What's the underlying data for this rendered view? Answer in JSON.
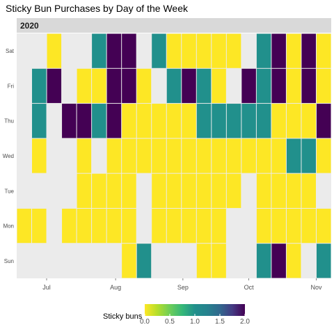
{
  "chart_data": {
    "type": "heatmap",
    "title": "Sticky Bun Purchases by Day of the Week",
    "facet_label": "2020",
    "y_categories": [
      "Sun",
      "Mon",
      "Tue",
      "Wed",
      "Thu",
      "Fri",
      "Sat"
    ],
    "x_tick_labels": [
      {
        "label": "Jul",
        "week": 2
      },
      {
        "label": "Aug",
        "week": 6.6
      },
      {
        "label": "Sep",
        "week": 11.1
      },
      {
        "label": "Oct",
        "week": 15.5
      },
      {
        "label": "Nov",
        "week": 20
      }
    ],
    "week_count": 21,
    "values": {
      "Sat": [
        null,
        null,
        0,
        null,
        null,
        1,
        2,
        2,
        null,
        1,
        0,
        0,
        0,
        0,
        0,
        null,
        1,
        2,
        0,
        2,
        0
      ],
      "Fri": [
        null,
        1,
        2,
        null,
        0,
        0,
        2,
        2,
        0,
        null,
        1,
        2,
        1,
        0,
        null,
        2,
        1,
        2,
        0,
        2,
        0
      ],
      "Thu": [
        null,
        1,
        null,
        2,
        2,
        1,
        2,
        0,
        0,
        0,
        0,
        0,
        1,
        1,
        1,
        1,
        1,
        0,
        0,
        0,
        2
      ],
      "Wed": [
        null,
        0,
        null,
        null,
        0,
        null,
        0,
        0,
        0,
        0,
        0,
        0,
        0,
        0,
        0,
        0,
        0,
        0,
        1,
        1,
        0
      ],
      "Tue": [
        null,
        null,
        null,
        null,
        0,
        0,
        0,
        0,
        null,
        0,
        0,
        0,
        0,
        0,
        0,
        null,
        0,
        0,
        0,
        0,
        null
      ],
      "Mon": [
        0,
        0,
        null,
        0,
        0,
        0,
        0,
        0,
        null,
        0,
        0,
        0,
        0,
        0,
        null,
        null,
        0,
        0,
        0,
        0,
        0
      ],
      "Sun": [
        null,
        null,
        null,
        null,
        null,
        null,
        null,
        0,
        1,
        null,
        null,
        null,
        0,
        0,
        null,
        null,
        1,
        2,
        0,
        null,
        1
      ]
    },
    "legend": {
      "title": "Sticky buns",
      "ticks": [
        0.0,
        0.5,
        1.0,
        1.5,
        2.0
      ],
      "tick_labels": [
        "0.0",
        "0.5",
        "1.0",
        "1.5",
        "2.0"
      ],
      "range": [
        0,
        2
      ],
      "placement": "bottom"
    },
    "colors": {
      "low": "#FDE725",
      "mid": "#21908C",
      "high": "#440154",
      "panel_background": "#EBEBEB",
      "strip_background": "#D9D9D9"
    },
    "grid": false
  }
}
